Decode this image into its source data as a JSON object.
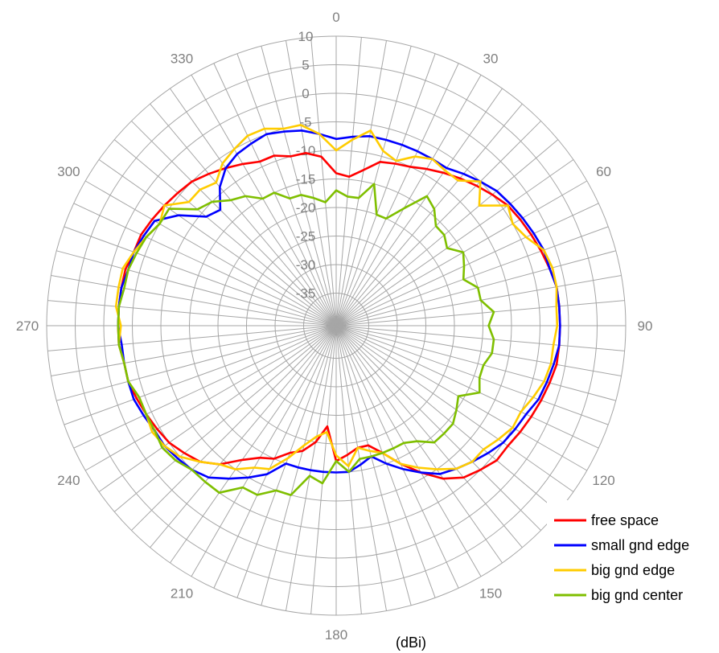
{
  "chart_data": {
    "type": "polar-line",
    "unit_label": "(dBi)",
    "r_range": [
      -40,
      10
    ],
    "r_tick_labels": [
      "-35",
      "-30",
      "-25",
      "-20",
      "-15",
      "-10",
      "-5",
      "0",
      "5",
      "10"
    ],
    "r_ticks": [
      -35,
      -30,
      -25,
      -20,
      -15,
      -10,
      -5,
      0,
      5,
      10
    ],
    "angle_labels": [
      "0",
      "30",
      "60",
      "90",
      "120",
      "150",
      "180",
      "210",
      "240",
      "270",
      "300",
      "330"
    ],
    "angle_ticks": [
      0,
      30,
      60,
      90,
      120,
      150,
      180,
      210,
      240,
      270,
      300,
      330
    ],
    "angle_step_spokes": 5,
    "direction": "clockwise",
    "zero_at": "top",
    "grid": true,
    "legend_position": "bottom-right",
    "angles": [
      0,
      5,
      10,
      15,
      20,
      25,
      30,
      35,
      40,
      45,
      50,
      55,
      60,
      65,
      70,
      75,
      80,
      85,
      90,
      95,
      100,
      105,
      110,
      115,
      120,
      125,
      130,
      135,
      140,
      145,
      150,
      155,
      160,
      165,
      170,
      175,
      180,
      185,
      190,
      195,
      200,
      205,
      210,
      215,
      220,
      225,
      230,
      235,
      240,
      245,
      250,
      255,
      260,
      265,
      270,
      275,
      280,
      285,
      290,
      295,
      300,
      305,
      310,
      315,
      320,
      325,
      330,
      335,
      340,
      345,
      350,
      355
    ],
    "series": [
      {
        "name": "free space",
        "color": "#ff0000",
        "values": [
          -14,
          -14.5,
          -13,
          -11,
          -10.5,
          -10,
          -9,
          -8,
          -7,
          -6,
          -5,
          -4,
          -3.5,
          -3,
          -2.5,
          -2,
          -1.5,
          -1.5,
          -1.5,
          -1.5,
          -1.5,
          -2,
          -2.5,
          -3,
          -3.5,
          -4,
          -4,
          -5,
          -6,
          -8,
          -11,
          -14,
          -17,
          -19,
          -19,
          -18,
          -17,
          -23,
          -20,
          -18,
          -17,
          -15,
          -14,
          -12,
          -9,
          -7,
          -6,
          -5,
          -4.5,
          -4,
          -3.5,
          -3,
          -3,
          -2.5,
          -2.5,
          -2.5,
          -2.5,
          -2.5,
          -3,
          -3,
          -3.5,
          -4,
          -4.5,
          -5,
          -6,
          -7,
          -8,
          -9,
          -9,
          -10,
          -10,
          -11
        ]
      },
      {
        "name": "small gnd edge",
        "color": "#0000ff",
        "values": [
          -8,
          -7.5,
          -7,
          -7,
          -7,
          -7,
          -7,
          -7,
          -6,
          -5,
          -4,
          -3.5,
          -3,
          -2.5,
          -2,
          -2,
          -1.5,
          -1.5,
          -1.5,
          -1.5,
          -2,
          -2.5,
          -3,
          -4,
          -4.5,
          -5,
          -6,
          -7,
          -8,
          -9,
          -11,
          -13,
          -15,
          -17,
          -16,
          -15,
          -15,
          -15,
          -15,
          -15,
          -15,
          -12,
          -10,
          -8,
          -6,
          -5,
          -4.5,
          -4,
          -4,
          -3.5,
          -3,
          -3,
          -3,
          -3,
          -2.5,
          -2.5,
          -2.5,
          -3,
          -3,
          -3.5,
          -4,
          -7,
          -11,
          -12,
          -9,
          -7,
          -6,
          -5.5,
          -5,
          -5.5,
          -6,
          -7
        ]
      },
      {
        "name": "big gnd edge",
        "color": "#ffcc00",
        "values": [
          -10,
          -8,
          -6,
          -9,
          -10,
          -8,
          -7,
          -7.5,
          -7.5,
          -5,
          -8,
          -4,
          -5,
          -4,
          -2,
          -1.5,
          -1.5,
          -2,
          -2,
          -2.5,
          -2.5,
          -3,
          -4,
          -5,
          -5,
          -6,
          -7,
          -7,
          -8,
          -10,
          -12,
          -14,
          -17,
          -18,
          -19,
          -16,
          -18,
          -22,
          -21,
          -19,
          -16,
          -13,
          -12,
          -10,
          -9,
          -7,
          -5,
          -4,
          -3.5,
          -4,
          -4,
          -3,
          -3,
          -2.5,
          -3,
          -2,
          -2,
          -2,
          -3,
          -4,
          -5,
          -4,
          -7,
          -7,
          -8,
          -6,
          -5,
          -4,
          -4,
          -5,
          -5,
          -7
        ]
      },
      {
        "name": "big gnd center",
        "color": "#7fbf00",
        "values": [
          -17,
          -18,
          -18,
          -15,
          -20,
          -20,
          -17,
          -13,
          -14,
          -16,
          -16,
          -17,
          -15,
          -16,
          -17,
          -15,
          -15,
          -13,
          -14,
          -13,
          -13,
          -14,
          -14,
          -13,
          -16,
          -15,
          -14,
          -14,
          -14,
          -16,
          -17,
          -17,
          -17,
          -17,
          -17,
          -15,
          -17,
          -13,
          -14,
          -10,
          -10,
          -8,
          -8,
          -5,
          -5,
          -5,
          -4,
          -3.5,
          -4,
          -4,
          -4,
          -3,
          -3,
          -2.5,
          -2.5,
          -2.5,
          -3,
          -3,
          -3.5,
          -4,
          -5,
          -5,
          -9,
          -10,
          -12,
          -13,
          -15,
          -15,
          -17,
          -17,
          -18,
          -19
        ]
      }
    ]
  }
}
